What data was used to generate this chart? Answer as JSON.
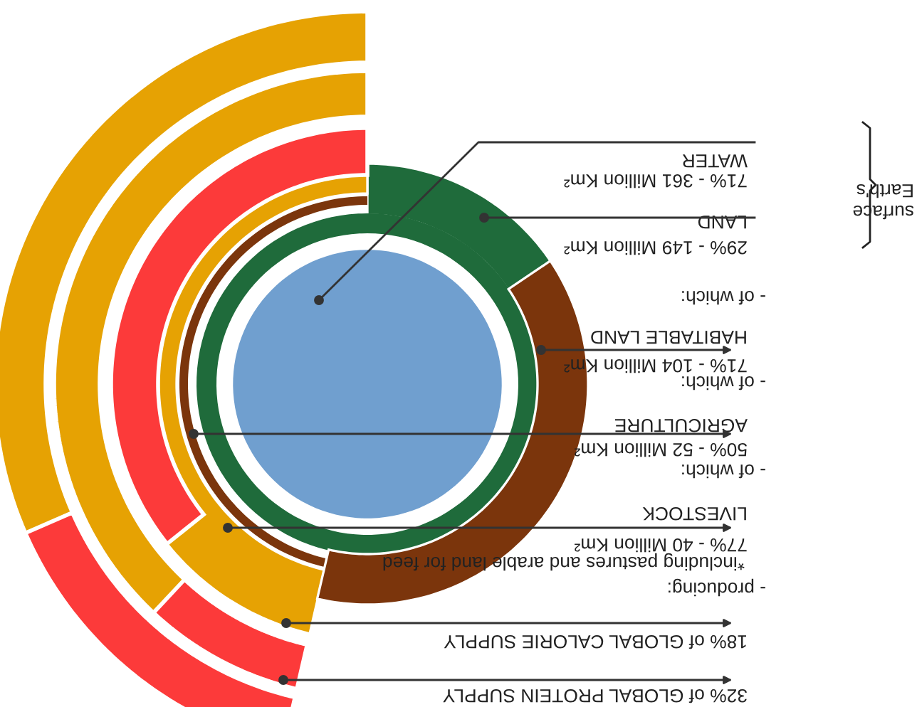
{
  "chart_data": {
    "type": "other",
    "categories": [
      "WATER",
      "LAND",
      "HABITABLE LAND",
      "AGRICULTURE",
      "LIVESTOCK",
      null,
      null
    ],
    "values": [
      71,
      29,
      71,
      50,
      77,
      18,
      32
    ],
    "value_labels": [
      "71% - 361 Million Km²",
      "29% - 149 Million Km²",
      "71% - 104 Million Km²",
      "50% - 52 Million Km²",
      "77% - 40 Million Km²",
      "18% of GLOBAL CALORIE SUPPLY",
      "32% of GLOBAL PROTEIN SUPPLY"
    ],
    "colors": [
      "#709fcf",
      "#1f6b3b",
      "#7b350c",
      "#e6a203",
      "#fc3a3a",
      "#fc3a3a",
      "#fc3a3a"
    ],
    "annotations": [
      "Earth's surface",
      "- of which:",
      "- of which:",
      "- of which:",
      "*including pastures and arable land for feed",
      "- producing:"
    ]
  }
}
